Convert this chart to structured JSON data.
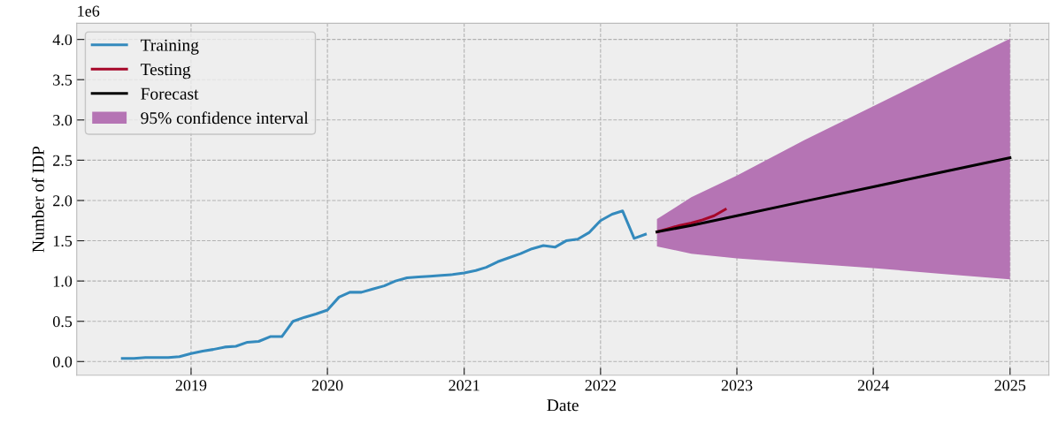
{
  "chart_data": {
    "type": "line",
    "xlabel": "Date",
    "ylabel": "Number of IDP",
    "annotations": [
      "1e6"
    ],
    "xlim": [
      "2018-03-01",
      "2025-04-15"
    ],
    "xticks": [
      "2019",
      "2020",
      "2021",
      "2022",
      "2023",
      "2024",
      "2025"
    ],
    "ylim": [
      -0.17,
      4.2
    ],
    "yticks": [
      {
        "value": 0,
        "label": "0.0"
      },
      0.5,
      {
        "value": 1,
        "label": "1.0"
      },
      1.5,
      {
        "value": 2,
        "label": "2.0"
      },
      2.5,
      {
        "value": 3,
        "label": "3.0"
      },
      3.5,
      {
        "value": 4,
        "label": "4.0"
      }
    ],
    "grid": true,
    "legend": "top left",
    "line_style": "solid",
    "marker": "none",
    "series": [
      {
        "name": "Training",
        "color": "#348abd",
        "x": [
          "2018-07",
          "2018-08",
          "2018-09",
          "2018-10",
          "2018-11",
          "2018-12",
          "2019-01",
          "2019-02",
          "2019-03",
          "2019-04",
          "2019-05",
          "2019-06",
          "2019-07",
          "2019-08",
          "2019-09",
          "2019-10",
          "2019-11",
          "2019-12",
          "2020-01",
          "2020-02",
          "2020-03",
          "2020-04",
          "2020-05",
          "2020-06",
          "2020-07",
          "2020-08",
          "2020-09",
          "2020-10",
          "2020-11",
          "2020-12",
          "2021-01",
          "2021-02",
          "2021-03",
          "2021-04",
          "2021-05",
          "2021-06",
          "2021-07",
          "2021-08",
          "2021-09",
          "2021-10",
          "2021-11",
          "2021-12",
          "2022-01",
          "2022-02",
          "2022-03",
          "2022-04",
          "2022-05"
        ],
        "values": [
          0.04,
          0.04,
          0.05,
          0.05,
          0.05,
          0.06,
          0.1,
          0.13,
          0.15,
          0.18,
          0.19,
          0.24,
          0.25,
          0.31,
          0.31,
          0.5,
          0.55,
          0.59,
          0.64,
          0.8,
          0.86,
          0.86,
          0.9,
          0.94,
          1.0,
          1.04,
          1.05,
          1.06,
          1.07,
          1.08,
          1.1,
          1.13,
          1.17,
          1.24,
          1.29,
          1.34,
          1.4,
          1.44,
          1.42,
          1.5,
          1.52,
          1.6,
          1.75,
          1.83,
          1.87,
          1.53,
          1.58
        ]
      },
      {
        "name": "Testing",
        "color": "#a60628",
        "x": [
          "2022-06",
          "2022-07",
          "2022-08",
          "2022-09",
          "2022-10",
          "2022-11",
          "2022-12"
        ],
        "values": [
          1.61,
          1.65,
          1.69,
          1.72,
          1.76,
          1.81,
          1.89
        ]
      },
      {
        "name": "Forecast",
        "color": "#000000",
        "x": [
          "2022-06",
          "2022-09",
          "2023-01",
          "2023-07",
          "2024-01",
          "2024-07",
          "2025-01"
        ],
        "values": [
          1.61,
          1.69,
          1.81,
          1.99,
          2.17,
          2.35,
          2.53
        ]
      },
      {
        "name": "95% confidence interval",
        "type": "area",
        "color": "#b574b4",
        "x": [
          "2022-06",
          "2022-09",
          "2023-01",
          "2023-07",
          "2024-01",
          "2024-07",
          "2025-01"
        ],
        "values": [
          null,
          null,
          null,
          null,
          null,
          null,
          null
        ],
        "lower": [
          1.43,
          1.34,
          1.28,
          1.22,
          1.16,
          1.09,
          1.02
        ],
        "upper": [
          1.77,
          2.04,
          2.31,
          2.75,
          3.17,
          3.59,
          4.01
        ]
      }
    ]
  }
}
